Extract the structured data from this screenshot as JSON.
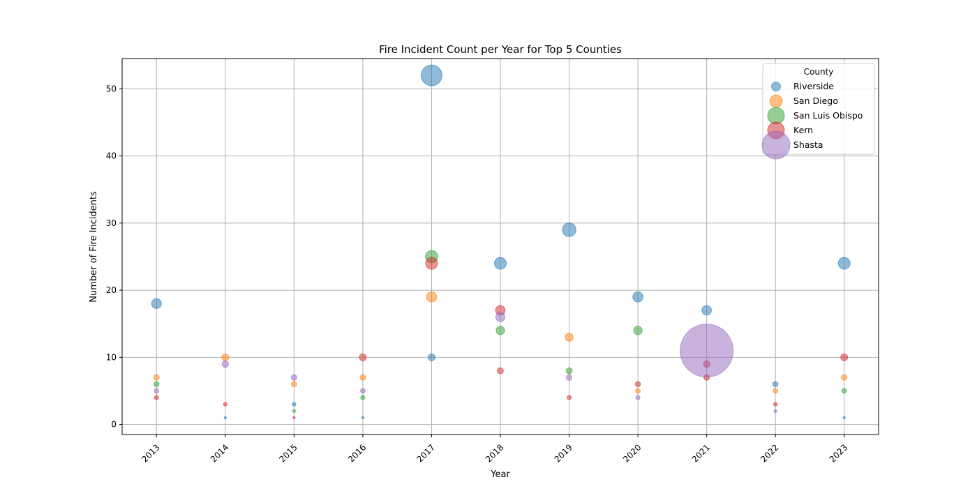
{
  "chart_data": {
    "type": "scatter",
    "title": "Fire Incident Count per Year for Top 5 Counties",
    "xlabel": "Year",
    "ylabel": "Number of Fire Incidents",
    "x_ticks": [
      "2013",
      "2014",
      "2015",
      "2016",
      "2017",
      "2018",
      "2019",
      "2020",
      "2021",
      "2022",
      "2023"
    ],
    "y_ticks": [
      0,
      10,
      20,
      30,
      40,
      50
    ],
    "xlim": [
      2012.5,
      2023.5
    ],
    "ylim": [
      -1.5,
      54.5
    ],
    "grid": true,
    "legend": {
      "title": "County",
      "placement": "top-right"
    },
    "series": [
      {
        "name": "Riverside",
        "color": "#1f77b4",
        "points": [
          [
            2013,
            18
          ],
          [
            2014,
            1
          ],
          [
            2015,
            3
          ],
          [
            2016,
            1
          ],
          [
            2017,
            52
          ],
          [
            2017,
            10
          ],
          [
            2018,
            24
          ],
          [
            2019,
            29
          ],
          [
            2020,
            19
          ],
          [
            2021,
            17
          ],
          [
            2022,
            6
          ],
          [
            2023,
            24
          ],
          [
            2023,
            1
          ]
        ]
      },
      {
        "name": "San Diego",
        "color": "#ff7f0e",
        "points": [
          [
            2013,
            7
          ],
          [
            2014,
            10
          ],
          [
            2015,
            6
          ],
          [
            2016,
            7
          ],
          [
            2017,
            19
          ],
          [
            2019,
            13
          ],
          [
            2020,
            5
          ],
          [
            2022,
            5
          ],
          [
            2023,
            7
          ]
        ]
      },
      {
        "name": "San Luis Obispo",
        "color": "#2ca02c",
        "points": [
          [
            2013,
            6
          ],
          [
            2015,
            2
          ],
          [
            2016,
            4
          ],
          [
            2017,
            25
          ],
          [
            2018,
            14
          ],
          [
            2019,
            8
          ],
          [
            2020,
            14
          ],
          [
            2023,
            5
          ]
        ]
      },
      {
        "name": "Kern",
        "color": "#d62728",
        "points": [
          [
            2013,
            4
          ],
          [
            2014,
            3
          ],
          [
            2015,
            1
          ],
          [
            2016,
            10
          ],
          [
            2017,
            24
          ],
          [
            2018,
            8
          ],
          [
            2018,
            17
          ],
          [
            2019,
            4
          ],
          [
            2020,
            6
          ],
          [
            2021,
            9
          ],
          [
            2021,
            7
          ],
          [
            2022,
            3
          ],
          [
            2023,
            10
          ]
        ]
      },
      {
        "name": "Shasta",
        "color": "#9467bd",
        "points": [
          [
            2013,
            5
          ],
          [
            2014,
            9
          ],
          [
            2015,
            7
          ],
          [
            2016,
            5
          ],
          [
            2018,
            16
          ],
          [
            2019,
            7
          ],
          [
            2020,
            4
          ],
          [
            2021,
            11
          ],
          [
            2022,
            2
          ]
        ]
      }
    ]
  }
}
